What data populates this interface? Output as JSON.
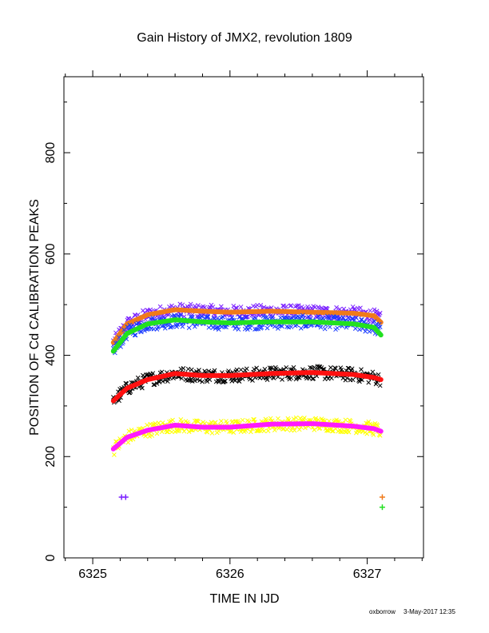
{
  "chart_data": {
    "type": "scatter",
    "title": "Gain History of JMX2, revolution 1809",
    "xlabel": "TIME IN IJD",
    "ylabel": "POSITION OF Cd CALIBRATION PEAKS",
    "xlim": [
      6324.79,
      6327.41
    ],
    "ylim": [
      0,
      950
    ],
    "xticks": [
      6325,
      6326,
      6327
    ],
    "yticks": [
      0,
      200,
      400,
      600,
      800
    ],
    "grid": false,
    "series": [
      {
        "color": "#7b22ff",
        "marker": "x",
        "trend": [
          [
            6325.15,
            425
          ],
          [
            6325.25,
            462
          ],
          [
            6325.4,
            480
          ],
          [
            6325.6,
            490
          ],
          [
            6325.8,
            487
          ],
          [
            6326.0,
            485
          ],
          [
            6326.3,
            487
          ],
          [
            6326.6,
            485
          ],
          [
            6326.9,
            483
          ],
          [
            6327.05,
            478
          ],
          [
            6327.1,
            470
          ]
        ],
        "extra_points": [
          [
            6325.21,
            120
          ],
          [
            6325.24,
            120
          ]
        ]
      },
      {
        "color": "#f07a1a",
        "marker": "line",
        "trend": [
          [
            6325.15,
            425
          ],
          [
            6325.25,
            462
          ],
          [
            6325.4,
            480
          ],
          [
            6325.6,
            490
          ],
          [
            6325.8,
            487
          ],
          [
            6326.0,
            485
          ],
          [
            6326.3,
            487
          ],
          [
            6326.6,
            485
          ],
          [
            6326.9,
            483
          ],
          [
            6327.05,
            478
          ],
          [
            6327.1,
            465
          ]
        ],
        "extra_points": [
          [
            6327.11,
            120
          ]
        ]
      },
      {
        "color": "#1a3cff",
        "marker": "x",
        "trend": [
          [
            6325.15,
            410
          ],
          [
            6325.25,
            445
          ],
          [
            6325.4,
            462
          ],
          [
            6325.6,
            468
          ],
          [
            6325.8,
            465
          ],
          [
            6326.0,
            463
          ],
          [
            6326.3,
            465
          ],
          [
            6326.6,
            466
          ],
          [
            6326.9,
            462
          ],
          [
            6327.05,
            456
          ],
          [
            6327.1,
            448
          ]
        ],
        "extra_points": []
      },
      {
        "color": "#22e020",
        "marker": "line",
        "trend": [
          [
            6325.15,
            408
          ],
          [
            6325.25,
            443
          ],
          [
            6325.4,
            462
          ],
          [
            6325.6,
            470
          ],
          [
            6325.8,
            466
          ],
          [
            6326.0,
            464
          ],
          [
            6326.3,
            466
          ],
          [
            6326.6,
            466
          ],
          [
            6326.9,
            462
          ],
          [
            6327.05,
            455
          ],
          [
            6327.1,
            440
          ]
        ],
        "extra_points": [
          [
            6327.11,
            100
          ]
        ]
      },
      {
        "color": "#000000",
        "marker": "x",
        "trend": [
          [
            6325.15,
            310
          ],
          [
            6325.25,
            335
          ],
          [
            6325.4,
            352
          ],
          [
            6325.6,
            364
          ],
          [
            6325.8,
            360
          ],
          [
            6326.0,
            360
          ],
          [
            6326.3,
            364
          ],
          [
            6326.6,
            366
          ],
          [
            6326.9,
            362
          ],
          [
            6327.05,
            356
          ],
          [
            6327.1,
            352
          ]
        ],
        "extra_points": []
      },
      {
        "color": "#ff1010",
        "marker": "line",
        "trend": [
          [
            6325.15,
            310
          ],
          [
            6325.25,
            335
          ],
          [
            6325.4,
            352
          ],
          [
            6325.6,
            364
          ],
          [
            6325.8,
            360
          ],
          [
            6326.0,
            360
          ],
          [
            6326.3,
            364
          ],
          [
            6326.6,
            366
          ],
          [
            6326.9,
            362
          ],
          [
            6327.05,
            356
          ],
          [
            6327.1,
            352
          ]
        ],
        "extra_points": []
      },
      {
        "color": "#ffff00",
        "marker": "x",
        "trend": [
          [
            6325.15,
            215
          ],
          [
            6325.25,
            238
          ],
          [
            6325.4,
            252
          ],
          [
            6325.6,
            262
          ],
          [
            6325.8,
            258
          ],
          [
            6326.0,
            258
          ],
          [
            6326.3,
            264
          ],
          [
            6326.6,
            265
          ],
          [
            6326.9,
            260
          ],
          [
            6327.05,
            255
          ],
          [
            6327.1,
            250
          ]
        ],
        "extra_points": []
      },
      {
        "color": "#ff1aff",
        "marker": "line",
        "trend": [
          [
            6325.15,
            215
          ],
          [
            6325.25,
            238
          ],
          [
            6325.4,
            252
          ],
          [
            6325.6,
            262
          ],
          [
            6325.8,
            258
          ],
          [
            6326.0,
            258
          ],
          [
            6326.3,
            264
          ],
          [
            6326.6,
            265
          ],
          [
            6326.9,
            260
          ],
          [
            6327.05,
            255
          ],
          [
            6327.1,
            250
          ]
        ],
        "extra_points": []
      }
    ]
  },
  "footer": {
    "user": "oxborrow",
    "timestamp": "3-May-2017 12:35"
  }
}
